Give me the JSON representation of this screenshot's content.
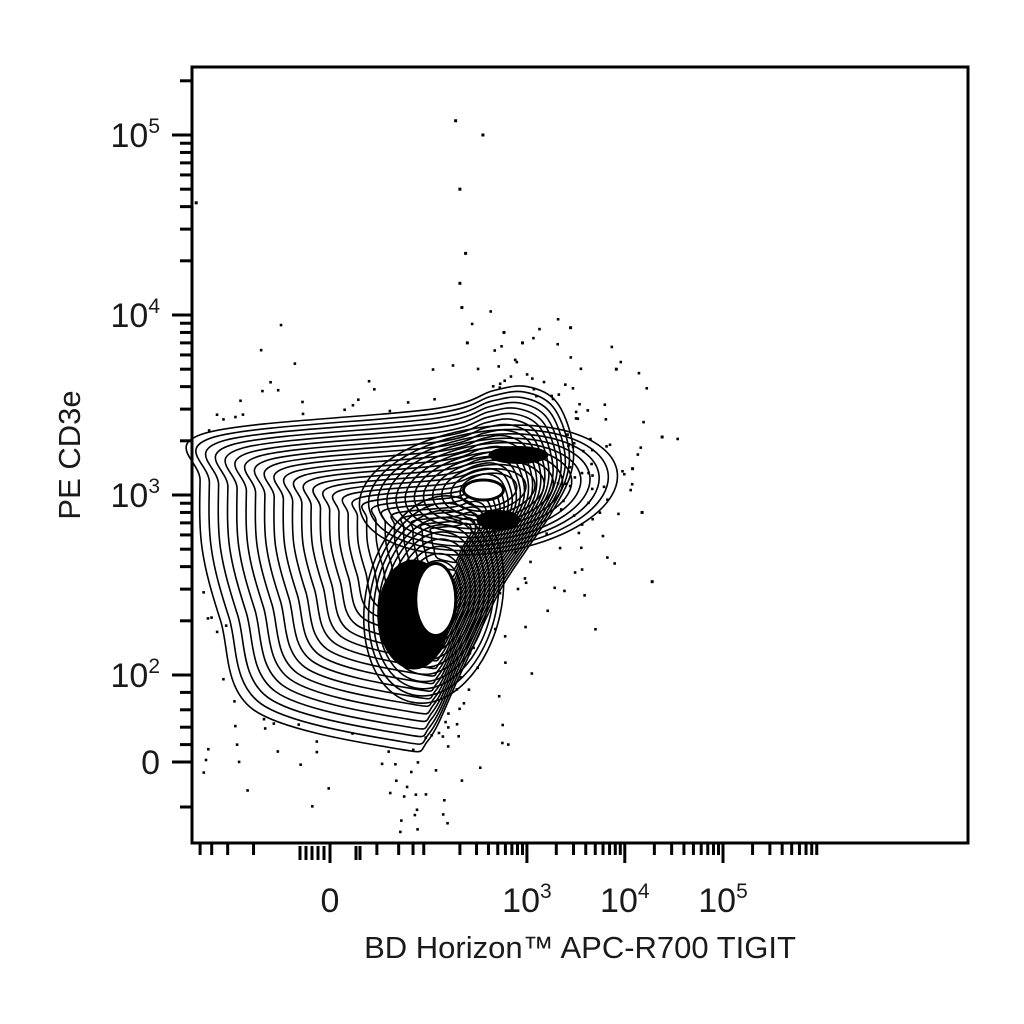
{
  "chart_data": {
    "type": "contour",
    "xlabel": "BD Horizon™ APC-R700 TIGIT",
    "ylabel": "PE CD3e",
    "x_scale": "biexponential",
    "y_scale": "biexponential",
    "x_ticks": [
      {
        "value": 0,
        "base": "0",
        "exp": ""
      },
      {
        "value": 1000,
        "base": "10",
        "exp": "3"
      },
      {
        "value": 10000,
        "base": "10",
        "exp": "4"
      },
      {
        "value": 100000,
        "base": "10",
        "exp": "5"
      }
    ],
    "y_ticks": [
      {
        "value": 0,
        "base": "0",
        "exp": ""
      },
      {
        "value": 100,
        "base": "10",
        "exp": "2"
      },
      {
        "value": 1000,
        "base": "10",
        "exp": "3"
      },
      {
        "value": 10000,
        "base": "10",
        "exp": "4"
      },
      {
        "value": 100000,
        "base": "10",
        "exp": "5"
      }
    ],
    "populations": [
      {
        "name": "",
        "x_center": 80,
        "y_center": 280,
        "relative_density": 1.0
      },
      {
        "name": "",
        "x_center": 400,
        "y_center": 1000,
        "relative_density": 0.85
      }
    ],
    "outer_contour": [
      [
        -180,
        2200
      ],
      [
        100,
        3000
      ],
      [
        450,
        3800
      ],
      [
        1000,
        4000
      ],
      [
        2000,
        3300
      ],
      [
        2900,
        2000
      ],
      [
        2800,
        1300
      ],
      [
        1800,
        800
      ],
      [
        1000,
        500
      ],
      [
        500,
        280
      ],
      [
        200,
        100
      ],
      [
        90,
        25
      ],
      [
        40,
        15
      ],
      [
        -50,
        60
      ],
      [
        -120,
        200
      ],
      [
        -190,
        500
      ],
      [
        -200,
        1200
      ]
    ],
    "outlier_events": [
      [
        180,
        120000
      ],
      [
        350,
        100000
      ],
      [
        -220,
        42000
      ],
      [
        200,
        50000
      ],
      [
        230,
        22000
      ],
      [
        200,
        15000
      ],
      [
        210,
        11000
      ],
      [
        240,
        7000
      ],
      [
        580,
        8000
      ],
      [
        900,
        7000
      ],
      [
        2800,
        8500
      ],
      [
        8200,
        5000
      ],
      [
        24000,
        2100
      ],
      [
        19000,
        330
      ],
      [
        15000,
        800
      ],
      [
        12000,
        1400
      ]
    ],
    "grid": false,
    "legend": "none"
  }
}
